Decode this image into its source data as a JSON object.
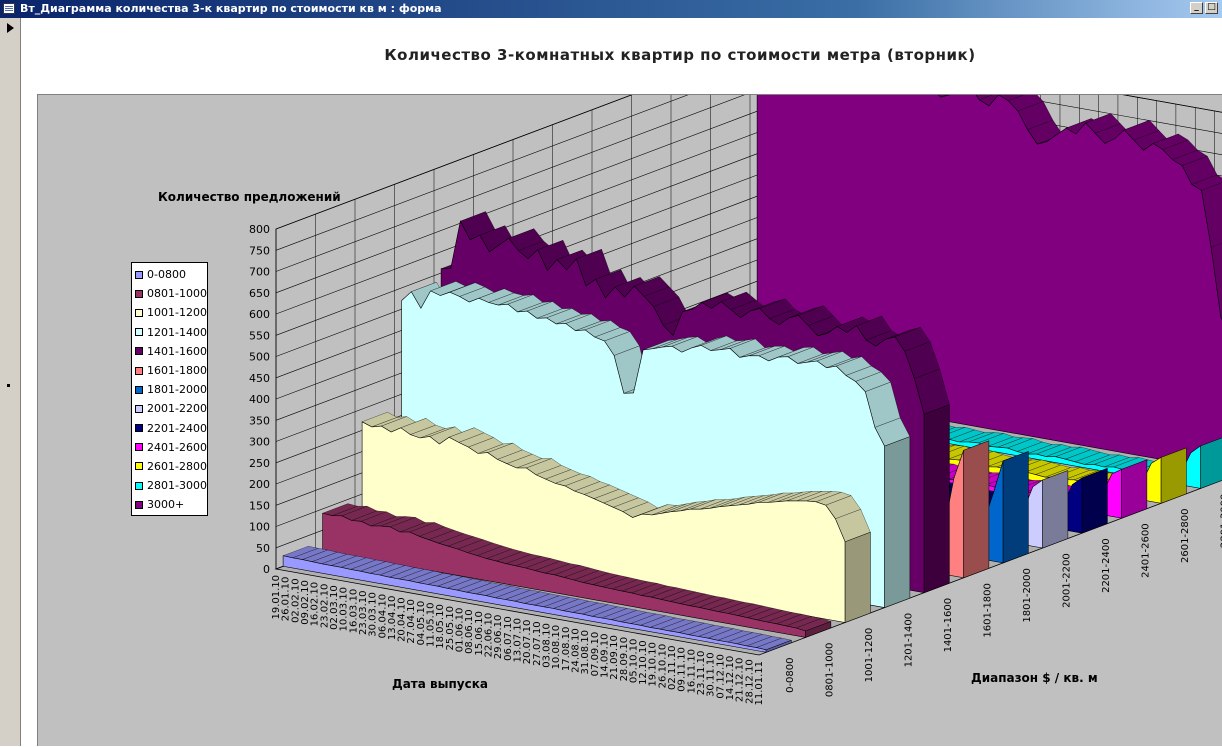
{
  "window": {
    "title": "Вт_Диаграмма количества 3-к квартир по стоимости кв м : форма"
  },
  "chart_data": {
    "type": "area",
    "title": "Количество 3-комнатных квартир по стоимости метра (вторник)",
    "ylabel": "Количество предложений",
    "xlabel": "Дата выпуска",
    "zlabel": "Диапазон $ / кв. м",
    "ylim": [
      0,
      800
    ],
    "yticks": [
      0,
      50,
      100,
      150,
      200,
      250,
      300,
      350,
      400,
      450,
      500,
      550,
      600,
      650,
      700,
      750,
      800
    ],
    "grid": true,
    "legend_position": "left",
    "dates": [
      "19.01.10",
      "26.01.10",
      "02.02.10",
      "09.02.10",
      "16.02.10",
      "23.02.10",
      "02.03.10",
      "10.03.10",
      "16.03.10",
      "23.03.10",
      "30.03.10",
      "06.04.10",
      "13.04.10",
      "20.04.10",
      "27.04.10",
      "04.05.10",
      "11.05.10",
      "18.05.10",
      "25.05.10",
      "01.06.10",
      "08.06.10",
      "15.06.10",
      "22.06.10",
      "29.06.10",
      "06.07.10",
      "13.07.10",
      "20.07.10",
      "27.07.10",
      "03.08.10",
      "10.08.10",
      "17.08.10",
      "24.08.10",
      "31.08.10",
      "07.09.10",
      "14.09.10",
      "21.09.10",
      "28.09.10",
      "05.10.10",
      "12.10.10",
      "19.10.10",
      "26.10.10",
      "02.11.10",
      "09.11.10",
      "16.11.10",
      "23.11.10",
      "30.11.10",
      "07.12.10",
      "14.12.10",
      "21.12.10",
      "28.12.10",
      "11.01.11"
    ],
    "series": [
      {
        "name": "0-0800",
        "color": "#9999ff",
        "values": [
          25,
          24,
          24,
          23,
          22,
          22,
          22,
          21,
          21,
          20,
          20,
          19,
          19,
          19,
          18,
          18,
          18,
          17,
          17,
          16,
          16,
          16,
          15,
          15,
          15,
          14,
          14,
          14,
          14,
          13,
          13,
          13,
          12,
          12,
          12,
          11,
          11,
          11,
          10,
          10,
          10,
          10,
          9,
          9,
          9,
          8,
          8,
          8,
          7,
          7,
          6
        ]
      },
      {
        "name": "0801-1000",
        "color": "#993366",
        "values": [
          90,
          88,
          92,
          85,
          87,
          80,
          84,
          86,
          78,
          82,
          76,
          72,
          68,
          65,
          62,
          58,
          55,
          52,
          50,
          48,
          47,
          46,
          44,
          42,
          42,
          40,
          38,
          36,
          35,
          34,
          33,
          32,
          32,
          30,
          30,
          29,
          28,
          27,
          26,
          26,
          25,
          24,
          24,
          23,
          22,
          21,
          20,
          20,
          19,
          18,
          15
        ]
      },
      {
        "name": "1001-1200",
        "color": "#ffffcc",
        "values": [
          270,
          262,
          268,
          258,
          272,
          260,
          256,
          264,
          250,
          270,
          262,
          255,
          244,
          250,
          238,
          232,
          226,
          230,
          218,
          212,
          206,
          204,
          196,
          192,
          186,
          180,
          174,
          168,
          158,
          170,
          172,
          180,
          188,
          194,
          202,
          206,
          212,
          220,
          226,
          232,
          238,
          246,
          250,
          256,
          262,
          266,
          270,
          272,
          268,
          240,
          190
        ]
      },
      {
        "name": "1201-1400",
        "color": "#ccffff",
        "values": [
          520,
          545,
          510,
          555,
          548,
          560,
          554,
          545,
          558,
          552,
          550,
          556,
          542,
          548,
          535,
          540,
          530,
          535,
          522,
          528,
          515,
          510,
          480,
          395,
          400,
          505,
          512,
          520,
          526,
          516,
          530,
          540,
          532,
          538,
          545,
          528,
          536,
          540,
          532,
          545,
          550,
          538,
          545,
          552,
          540,
          548,
          530,
          520,
          500,
          420,
          380
        ]
      },
      {
        "name": "1401-1600",
        "color": "#660066",
        "values": [
          560,
          565,
          680,
          640,
          655,
          620,
          640,
          660,
          635,
          620,
          645,
          600,
          630,
          610,
          640,
          580,
          600,
          560,
          590,
          570,
          600,
          580,
          560,
          520,
          500,
          560,
          570,
          590,
          580,
          600,
          585,
          570,
          590,
          600,
          580,
          570,
          590,
          600,
          580,
          560,
          570,
          590,
          580,
          600,
          570,
          560,
          580,
          590,
          560,
          500,
          420
        ]
      },
      {
        "name": "1601-1800",
        "color": "#ff8080",
        "values": [
          80,
          82,
          78,
          85,
          80,
          76,
          84,
          80,
          78,
          82,
          80,
          76,
          78,
          80,
          74,
          78,
          76,
          80,
          72,
          76,
          74,
          70,
          68,
          72,
          70,
          68,
          72,
          74,
          70,
          72,
          74,
          70,
          68,
          72,
          70,
          74,
          72,
          70,
          68,
          72,
          70,
          74,
          72,
          70,
          74,
          72,
          70,
          76,
          110,
          230,
          300
        ]
      },
      {
        "name": "1801-2000",
        "color": "#0066cc",
        "values": [
          60,
          62,
          58,
          64,
          60,
          56,
          62,
          60,
          58,
          62,
          60,
          56,
          58,
          60,
          54,
          58,
          56,
          60,
          52,
          56,
          54,
          50,
          48,
          52,
          50,
          48,
          52,
          54,
          50,
          52,
          54,
          50,
          48,
          52,
          50,
          54,
          52,
          50,
          48,
          52,
          50,
          54,
          52,
          50,
          54,
          52,
          50,
          56,
          90,
          160,
          240
        ]
      },
      {
        "name": "2001-2200",
        "color": "#ccccff",
        "values": [
          50,
          52,
          48,
          54,
          50,
          46,
          52,
          50,
          48,
          52,
          50,
          46,
          48,
          50,
          44,
          48,
          46,
          50,
          42,
          46,
          44,
          40,
          38,
          42,
          40,
          38,
          42,
          44,
          40,
          42,
          44,
          40,
          38,
          42,
          40,
          44,
          42,
          40,
          38,
          42,
          40,
          44,
          42,
          40,
          44,
          42,
          40,
          46,
          80,
          140,
          160
        ]
      },
      {
        "name": "2201-2400",
        "color": "#000080",
        "values": [
          40,
          42,
          38,
          44,
          40,
          36,
          42,
          40,
          38,
          42,
          40,
          36,
          38,
          40,
          34,
          38,
          36,
          40,
          32,
          36,
          34,
          30,
          28,
          32,
          30,
          28,
          32,
          34,
          30,
          32,
          34,
          30,
          28,
          32,
          30,
          34,
          32,
          30,
          28,
          32,
          30,
          34,
          32,
          30,
          34,
          32,
          30,
          36,
          60,
          110,
          130
        ]
      },
      {
        "name": "2401-2600",
        "color": "#ff00ff",
        "values": [
          30,
          32,
          28,
          34,
          30,
          26,
          32,
          30,
          28,
          32,
          30,
          26,
          28,
          30,
          24,
          28,
          26,
          30,
          22,
          26,
          24,
          20,
          18,
          22,
          20,
          18,
          22,
          24,
          20,
          22,
          24,
          20,
          18,
          22,
          20,
          24,
          22,
          20,
          18,
          22,
          20,
          24,
          22,
          20,
          24,
          22,
          20,
          26,
          50,
          100,
          115
        ]
      },
      {
        "name": "2601-2800",
        "color": "#ffff00",
        "values": [
          25,
          27,
          23,
          29,
          25,
          21,
          27,
          25,
          23,
          27,
          25,
          21,
          23,
          25,
          19,
          23,
          21,
          25,
          17,
          21,
          19,
          15,
          13,
          17,
          15,
          13,
          17,
          19,
          15,
          17,
          19,
          15,
          13,
          17,
          15,
          19,
          17,
          15,
          13,
          17,
          15,
          19,
          17,
          15,
          19,
          17,
          15,
          21,
          40,
          90,
          108
        ]
      },
      {
        "name": "2801-3000",
        "color": "#00ffff",
        "values": [
          20,
          22,
          18,
          24,
          20,
          16,
          22,
          20,
          18,
          22,
          20,
          16,
          18,
          20,
          14,
          18,
          16,
          20,
          12,
          16,
          14,
          10,
          8,
          12,
          10,
          8,
          12,
          14,
          10,
          12,
          14,
          10,
          8,
          12,
          10,
          14,
          12,
          10,
          8,
          12,
          10,
          14,
          12,
          10,
          14,
          12,
          10,
          16,
          30,
          80,
          100
        ]
      },
      {
        "name": "3000+",
        "color": "#800080",
        "values": [
          780,
          790,
          775,
          800,
          782,
          760,
          790,
          770,
          785,
          760,
          790,
          795,
          780,
          770,
          800,
          765,
          790,
          800,
          780,
          760,
          770,
          785,
          800,
          770,
          760,
          790,
          780,
          760,
          720,
          690,
          700,
          720,
          740,
          730,
          760,
          740,
          720,
          735,
          760,
          740,
          720,
          740,
          730,
          710,
          700,
          660,
          650,
          520,
          360,
          320,
          330
        ]
      }
    ],
    "ranges": [
      "0-0800",
      "0801-1000",
      "1001-1200",
      "1201-1400",
      "1401-1600",
      "1601-1800",
      "1801-2000",
      "2001-2200",
      "2201-2400",
      "2401-2600",
      "2601-2800",
      "2801-3000",
      "3000+"
    ]
  }
}
